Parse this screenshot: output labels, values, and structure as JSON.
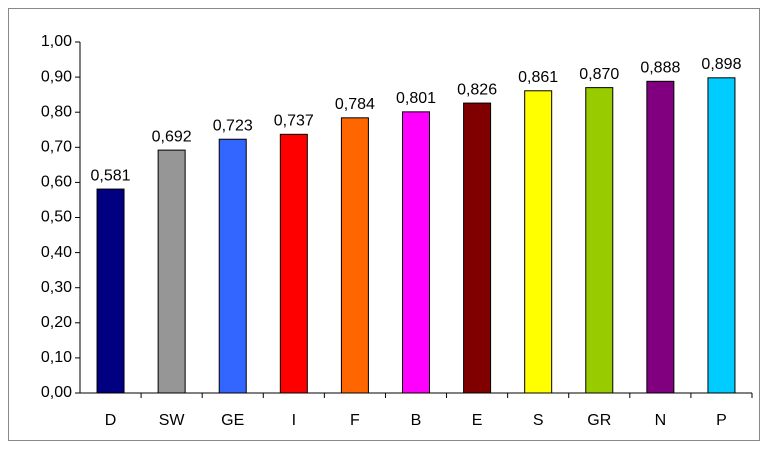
{
  "chart_data": {
    "type": "bar",
    "categories": [
      "D",
      "SW",
      "GE",
      "I",
      "F",
      "B",
      "E",
      "S",
      "GR",
      "N",
      "P"
    ],
    "values": [
      0.581,
      0.692,
      0.723,
      0.737,
      0.784,
      0.801,
      0.826,
      0.861,
      0.87,
      0.888,
      0.898
    ],
    "value_labels": [
      "0,581",
      "0,692",
      "0,723",
      "0,737",
      "0,784",
      "0,801",
      "0,826",
      "0,861",
      "0,870",
      "0,888",
      "0,898"
    ],
    "colors": [
      "#000080",
      "#969696",
      "#3366ff",
      "#ff0000",
      "#ff6600",
      "#ff00ff",
      "#800000",
      "#ffff00",
      "#99cc00",
      "#800080",
      "#00ccff"
    ],
    "ylim": [
      0,
      1
    ],
    "yticks": [
      {
        "value": 0,
        "label": "0,00"
      },
      {
        "value": 0.1,
        "label": "0,10"
      },
      {
        "value": 0.2,
        "label": "0,20"
      },
      {
        "value": 0.3,
        "label": "0,30"
      },
      {
        "value": 0.4,
        "label": "0,40"
      },
      {
        "value": 0.5,
        "label": "0,50"
      },
      {
        "value": 0.6,
        "label": "0,60"
      },
      {
        "value": 0.7,
        "label": "0,70"
      },
      {
        "value": 0.8,
        "label": "0,80"
      },
      {
        "value": 0.9,
        "label": "0,90"
      },
      {
        "value": 1,
        "label": "1,00"
      }
    ],
    "grid": false
  }
}
